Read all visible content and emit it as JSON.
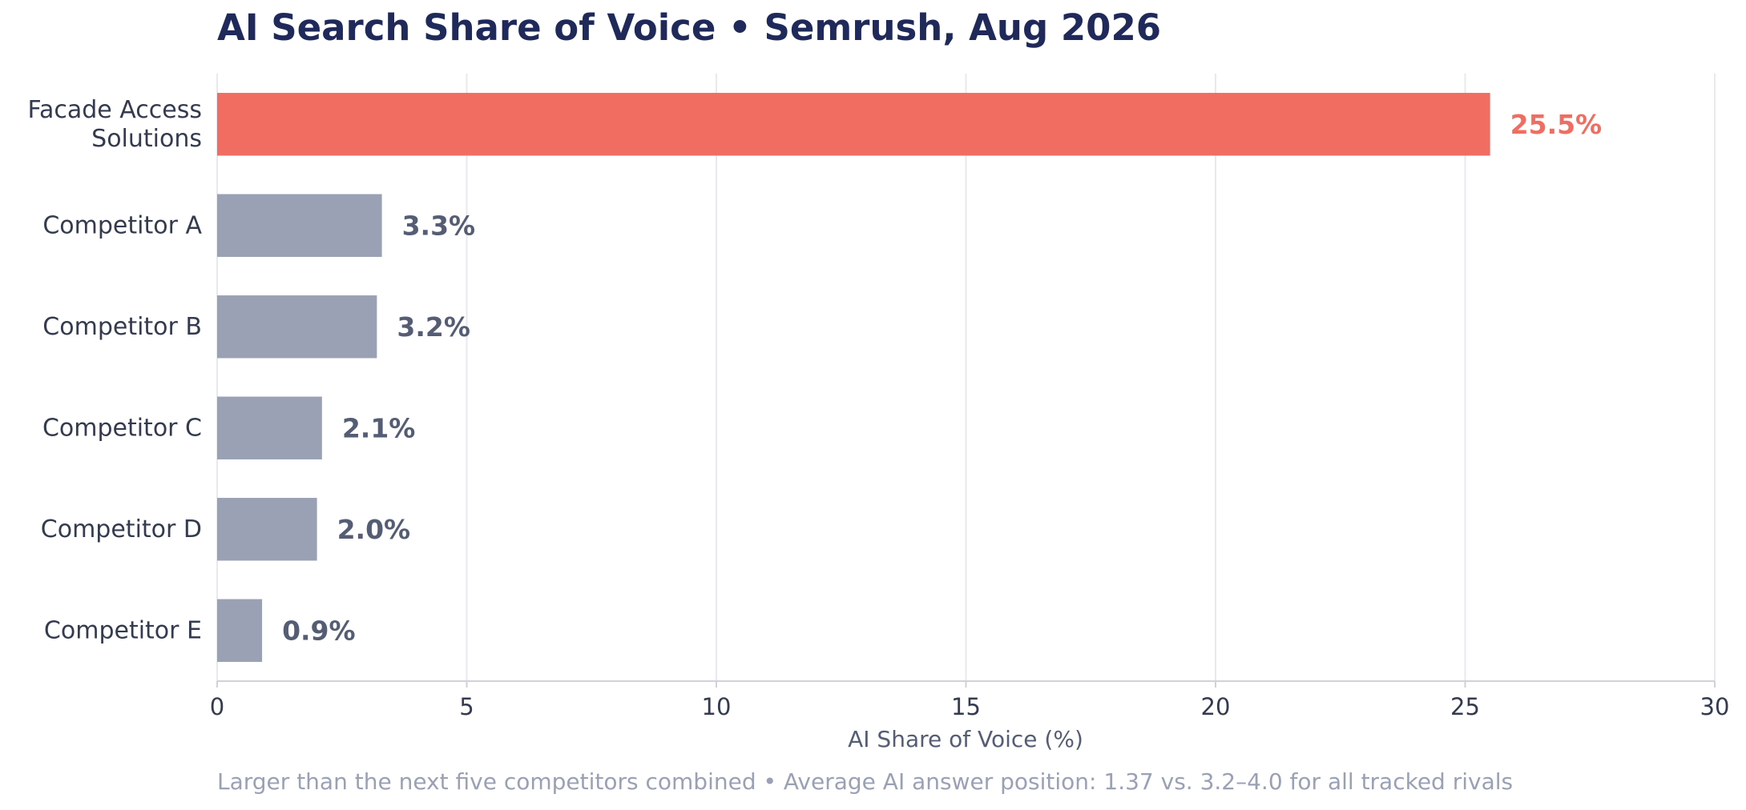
{
  "chart_data": {
    "type": "bar",
    "orientation": "horizontal",
    "title": "AI Search Share of Voice  •  Semrush, Aug 2026",
    "xlabel": "AI Share of Voice (%)",
    "ylabel": "",
    "xlim": [
      0,
      30
    ],
    "xticks": [
      0,
      5,
      10,
      15,
      20,
      25,
      30
    ],
    "grid": "vertical",
    "legend": "none",
    "categories": [
      [
        "Facade Access",
        "Solutions"
      ],
      [
        "Competitor A"
      ],
      [
        "Competitor B"
      ],
      [
        "Competitor C"
      ],
      [
        "Competitor D"
      ],
      [
        "Competitor E"
      ]
    ],
    "values": [
      25.5,
      3.3,
      3.2,
      2.1,
      2.0,
      0.9
    ],
    "value_labels": [
      "25.5%",
      "3.3%",
      "3.2%",
      "2.1%",
      "2.0%",
      "0.9%"
    ],
    "highlight_index": 0,
    "colors": {
      "highlight": "#f26d61",
      "default": "#9aa1b5",
      "default_label": "#555d75",
      "title": "#1f2a5a",
      "axis_text": "#343b4f",
      "grid": "#e8e9ee",
      "footnote": "#9aa1b5"
    },
    "footnote": "Larger than the next five competitors combined  •  Average AI answer position: 1.37 vs. 3.2–4.0 for all tracked rivals"
  }
}
